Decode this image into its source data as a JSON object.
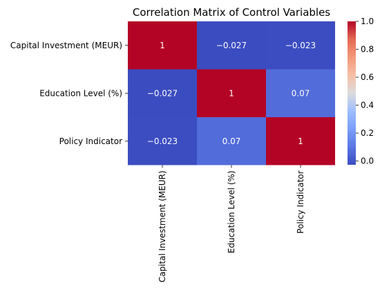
{
  "chart_data": {
    "type": "heatmap",
    "title": "Correlation Matrix of Control Variables",
    "row_labels": [
      "Capital Investment (MEUR)",
      "Education Level (%)",
      "Policy Indicator"
    ],
    "col_labels": [
      "Capital Investment (MEUR)",
      "Education Level (%)",
      "Policy Indicator"
    ],
    "values": [
      [
        1,
        -0.027,
        -0.023
      ],
      [
        -0.027,
        1,
        0.07
      ],
      [
        -0.023,
        0.07,
        1
      ]
    ],
    "annotations": [
      [
        "1",
        "−0.027",
        "−0.023"
      ],
      [
        "−0.027",
        "1",
        "0.07"
      ],
      [
        "−0.023",
        "0.07",
        "1"
      ]
    ],
    "colormap": "coolwarm",
    "colorbar": {
      "range": [
        -0.027,
        1
      ],
      "ticks": [
        0.0,
        0.2,
        0.4,
        0.6,
        0.8,
        1.0
      ],
      "tick_labels": [
        "0.0",
        "0.2",
        "0.4",
        "0.6",
        "0.8",
        "1.0"
      ]
    }
  }
}
